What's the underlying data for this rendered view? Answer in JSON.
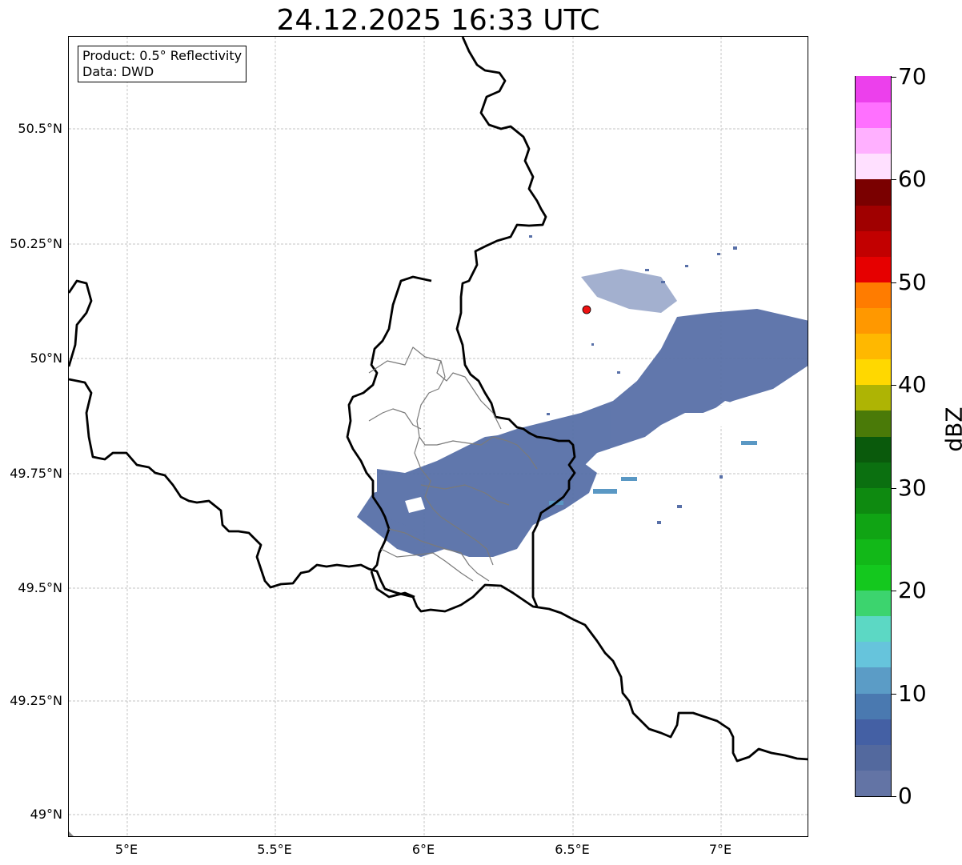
{
  "title": "24.12.2025 16:33 UTC",
  "info": {
    "product": "Product: 0.5° Reflectivity",
    "data": "Data: DWD"
  },
  "lat_ticks": [
    "50.5°N",
    "50.25°N",
    "50°N",
    "49.75°N",
    "49.5°N",
    "49.25°N",
    "49°N"
  ],
  "lon_ticks": [
    "5°E",
    "5.5°E",
    "6°E",
    "6.5°E",
    "7°E"
  ],
  "radar_site": {
    "lon": 6.55,
    "lat": 50.11,
    "color": "#ee1111"
  },
  "colorbar": {
    "unit": "dBZ",
    "min": 0,
    "max": 70,
    "step": 2.5,
    "tick_labels": [
      "0",
      "10",
      "20",
      "30",
      "40",
      "50",
      "60",
      "70"
    ],
    "colors": [
      "#6374a5",
      "#53699e",
      "#4460a4",
      "#4a79b0",
      "#5b9cc6",
      "#66c4dc",
      "#5cd8c4",
      "#3cd46e",
      "#14c81e",
      "#12b818",
      "#10a414",
      "#0e8a10",
      "#0b7010",
      "#0a5a0c",
      "#4a7a08",
      "#aeb404",
      "#ffd800",
      "#ffb800",
      "#ff9800",
      "#ff7c00",
      "#e60000",
      "#c20000",
      "#a00000",
      "#7a0000",
      "#ffe0ff",
      "#ffb0ff",
      "#ff70ff",
      "#ec40ec"
    ]
  },
  "legend_colors": {
    "country_border": "#000000",
    "admin_border": "#7a7a7a",
    "grid": "#b0b0b0"
  }
}
